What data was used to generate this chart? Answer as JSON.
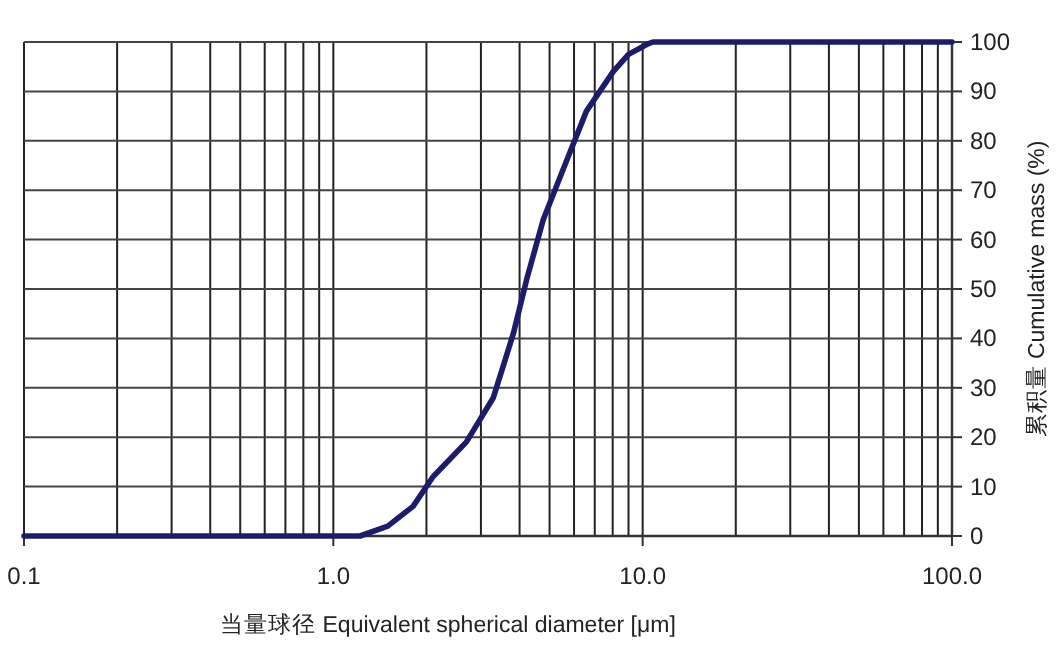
{
  "chart_data": {
    "type": "line",
    "xlabel": "当量球径 Equivalent spherical diameter [μm]",
    "ylabel": "累积量 Cumulative mass (%)",
    "log": "x",
    "grid": true,
    "x": [
      0.1,
      1.0,
      1.22,
      1.5,
      1.81,
      2.1,
      2.69,
      3.29,
      3.82,
      4.22,
      4.77,
      5.68,
      6.58,
      8.03,
      9.0,
      10.3,
      10.8,
      100
    ],
    "series": [
      {
        "color": "#1c1c6b",
        "values": [
          0,
          0,
          0,
          2,
          6,
          12,
          19,
          28,
          41,
          52,
          64,
          76,
          86,
          94,
          97.5,
          99.5,
          100,
          100
        ]
      }
    ],
    "xlim": [
      0.1,
      100
    ],
    "ylim": [
      0,
      100
    ],
    "xticks": [
      0.1,
      {
        "value": 1,
        "label": "1.0"
      },
      {
        "value": 10,
        "label": "10.0"
      },
      {
        "value": 100,
        "label": "100.0"
      }
    ],
    "yticks": [
      0,
      10,
      20,
      30,
      40,
      50,
      60,
      70,
      80,
      90,
      100
    ]
  }
}
